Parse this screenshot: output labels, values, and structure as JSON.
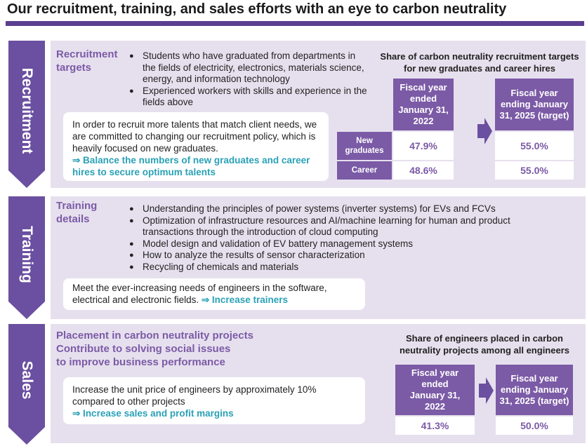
{
  "title": "Our recruitment, training, and sales efforts with an eye to carbon neutrality",
  "sections": [
    {
      "label": "Recruitment",
      "heading": "Recruitment targets",
      "bullets": [
        "Students who have graduated from departments in the fields of electricity, electronics, materials science, energy, and information technology",
        "Experienced workers with skills and experience in the fields above"
      ],
      "note": "In order to recruit more talents that match client needs, we are committed to changing our recruitment policy, which is heavily focused on new graduates.",
      "action": "⇒ Balance the numbers of new graduates and career hires to secure optimum talents",
      "table": {
        "title": "Share of carbon neutrality recruitment targets for new graduates and career hires",
        "columns": [
          "Fiscal year ended January 31, 2022",
          "Fiscal year ending January 31, 2025 (target)"
        ],
        "rows": [
          {
            "label": "New graduates",
            "values": [
              "47.9%",
              "55.0%"
            ]
          },
          {
            "label": "Career",
            "values": [
              "48.6%",
              "55.0%"
            ]
          }
        ]
      }
    },
    {
      "label": "Training",
      "heading": "Training details",
      "bullets": [
        "Understanding the principles of power systems (inverter systems) for EVs and FCVs",
        "Optimization of infrastructure resources and AI/machine learning for human and product transactions through the introduction of cloud computing",
        "Model design and validation of EV battery management systems",
        "How to analyze the results of sensor characterization",
        "Recycling of chemicals and materials"
      ],
      "note": "Meet the ever-increasing needs of engineers in the software, electrical and electronic fields.",
      "action": "⇒ Increase trainers"
    },
    {
      "label": "Sales",
      "heading_lines": [
        "Placement in carbon neutrality projects",
        "Contribute to solving social issues",
        "to improve business performance"
      ],
      "note": "Increase the unit price of engineers by approximately 10% compared to other projects",
      "action": "⇒ Increase sales and profit margins",
      "table": {
        "title": "Share of engineers placed in carbon neutrality projects among all engineers",
        "columns": [
          "Fiscal year ended January 31, 2022",
          "Fiscal year ending January 31, 2025 (target)"
        ],
        "rows": [
          {
            "values": [
              "41.3%",
              "50.0%"
            ]
          }
        ]
      }
    }
  ]
}
